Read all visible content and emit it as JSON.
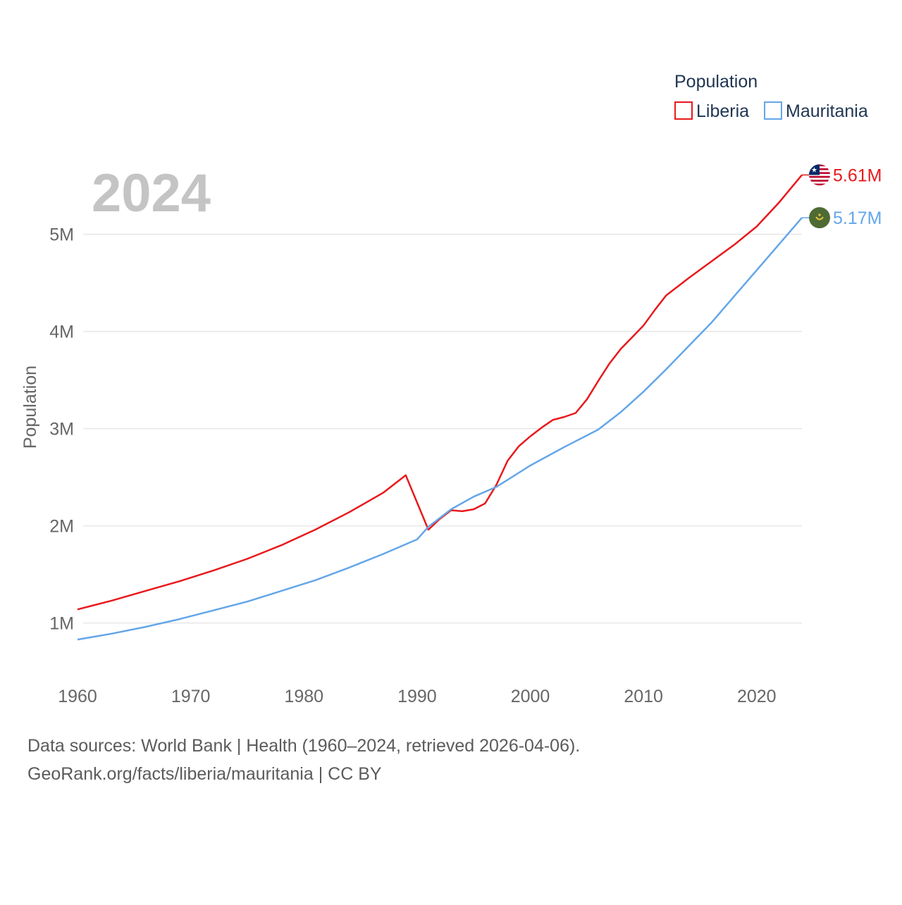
{
  "chart_data": {
    "type": "line",
    "year_label": "2024",
    "ylabel": "Population",
    "xlabel": "",
    "xlim": [
      1960,
      2024
    ],
    "ylim": [
      0,
      5800000
    ],
    "x_ticks": [
      1960,
      1970,
      1980,
      1990,
      2000,
      2010,
      2020
    ],
    "y_ticks": [
      {
        "value": 1000000,
        "label": "1M"
      },
      {
        "value": 2000000,
        "label": "2M"
      },
      {
        "value": 3000000,
        "label": "3M"
      },
      {
        "value": 4000000,
        "label": "4M"
      },
      {
        "value": 5000000,
        "label": "5M"
      }
    ],
    "legend": {
      "title": "Population",
      "position": "top-right"
    },
    "series": [
      {
        "name": "Liberia",
        "color": "#e8191c",
        "end_label": "5.61M",
        "flag": "liberia-flag",
        "points": [
          [
            1960,
            1140000
          ],
          [
            1963,
            1230000
          ],
          [
            1966,
            1330000
          ],
          [
            1969,
            1430000
          ],
          [
            1972,
            1540000
          ],
          [
            1975,
            1660000
          ],
          [
            1978,
            1800000
          ],
          [
            1981,
            1960000
          ],
          [
            1984,
            2140000
          ],
          [
            1987,
            2340000
          ],
          [
            1989,
            2520000
          ],
          [
            1991,
            1960000
          ],
          [
            1992,
            2070000
          ],
          [
            1993,
            2160000
          ],
          [
            1994,
            2150000
          ],
          [
            1995,
            2170000
          ],
          [
            1996,
            2230000
          ],
          [
            1997,
            2420000
          ],
          [
            1998,
            2670000
          ],
          [
            1999,
            2820000
          ],
          [
            2000,
            2920000
          ],
          [
            2001,
            3010000
          ],
          [
            2002,
            3090000
          ],
          [
            2003,
            3120000
          ],
          [
            2004,
            3160000
          ],
          [
            2005,
            3300000
          ],
          [
            2006,
            3490000
          ],
          [
            2007,
            3670000
          ],
          [
            2008,
            3820000
          ],
          [
            2009,
            3940000
          ],
          [
            2010,
            4060000
          ],
          [
            2011,
            4220000
          ],
          [
            2012,
            4370000
          ],
          [
            2014,
            4550000
          ],
          [
            2016,
            4720000
          ],
          [
            2018,
            4890000
          ],
          [
            2020,
            5080000
          ],
          [
            2022,
            5330000
          ],
          [
            2024,
            5610000
          ]
        ]
      },
      {
        "name": "Mauritania",
        "color": "#64a6e8",
        "end_label": "5.17M",
        "flag": "mauritania-flag",
        "points": [
          [
            1960,
            830000
          ],
          [
            1963,
            890000
          ],
          [
            1966,
            960000
          ],
          [
            1969,
            1040000
          ],
          [
            1972,
            1130000
          ],
          [
            1975,
            1220000
          ],
          [
            1978,
            1330000
          ],
          [
            1981,
            1440000
          ],
          [
            1984,
            1570000
          ],
          [
            1987,
            1710000
          ],
          [
            1990,
            1860000
          ],
          [
            1991,
            1990000
          ],
          [
            1993,
            2170000
          ],
          [
            1995,
            2300000
          ],
          [
            1997,
            2400000
          ],
          [
            2000,
            2620000
          ],
          [
            2003,
            2810000
          ],
          [
            2006,
            2990000
          ],
          [
            2008,
            3170000
          ],
          [
            2010,
            3380000
          ],
          [
            2012,
            3610000
          ],
          [
            2014,
            3850000
          ],
          [
            2016,
            4090000
          ],
          [
            2018,
            4360000
          ],
          [
            2020,
            4630000
          ],
          [
            2022,
            4900000
          ],
          [
            2024,
            5170000
          ]
        ]
      }
    ]
  },
  "footer": {
    "source_line": "Data sources: World Bank | Health (1960–2024, retrieved 2026-04-06).",
    "credit_line": "GeoRank.org/facts/liberia/mauritania | CC BY"
  }
}
